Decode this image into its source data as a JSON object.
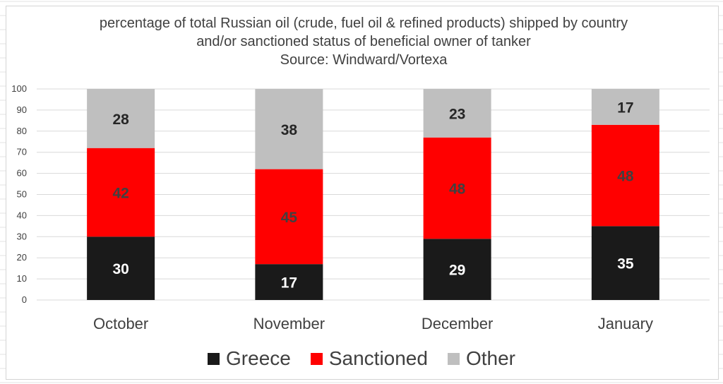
{
  "chart_data": {
    "type": "bar",
    "stacked": true,
    "title": [
      "percentage of total Russian oil (crude, fuel oil & refined products) shipped by country",
      "and/or sanctioned status of beneficial owner of tanker",
      "Source: Windward/Vortexa"
    ],
    "categories": [
      "October",
      "November",
      "December",
      "January"
    ],
    "series": [
      {
        "name": "Greece",
        "color": "#1a1a1a",
        "label_color": "#ffffff",
        "values": [
          30,
          17,
          29,
          35
        ]
      },
      {
        "name": "Sanctioned",
        "color": "#ff0000",
        "label_color": "#404040",
        "values": [
          42,
          45,
          48,
          48
        ]
      },
      {
        "name": "Other",
        "color": "#bfbfbf",
        "label_color": "#262626",
        "values": [
          28,
          38,
          23,
          17
        ]
      }
    ],
    "ylim": [
      0,
      100
    ],
    "yticks": [
      0,
      10,
      20,
      30,
      40,
      50,
      60,
      70,
      80,
      90,
      100
    ],
    "grid": true,
    "legend": "bottom",
    "xlabel": "",
    "ylabel": ""
  }
}
